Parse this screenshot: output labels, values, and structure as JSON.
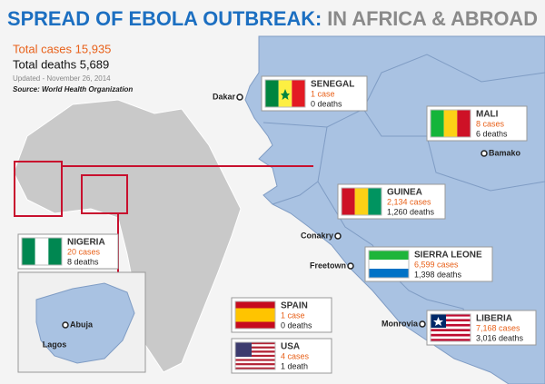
{
  "header": {
    "title_main": "SPREAD OF EBOLA OUTBREAK:",
    "title_sub": "IN AFRICA & ABROAD"
  },
  "summary": {
    "total_cases": "Total cases 15,935",
    "total_deaths": "Total deaths 5,689",
    "updated": "Updated - November 26, 2014",
    "source": "Source: World Health Organization"
  },
  "countries": [
    {
      "name": "SENEGAL",
      "cases": "1 case",
      "deaths": "0 deaths"
    },
    {
      "name": "MALI",
      "cases": "8 cases",
      "deaths": "6 deaths"
    },
    {
      "name": "GUINEA",
      "cases": "2,134 cases",
      "deaths": "1,260 deaths"
    },
    {
      "name": "SIERRA LEONE",
      "cases": "6,599 cases",
      "deaths": "1,398 deaths"
    },
    {
      "name": "LIBERIA",
      "cases": "7,168 cases",
      "deaths": "3,016 deaths"
    },
    {
      "name": "NIGERIA",
      "cases": "20 cases",
      "deaths": "8 deaths"
    },
    {
      "name": "SPAIN",
      "cases": "1 case",
      "deaths": "0 deaths"
    },
    {
      "name": "USA",
      "cases": "4 cases",
      "deaths": "1 death"
    }
  ],
  "cities": [
    "Dakar",
    "Bamako",
    "Conakry",
    "Freetown",
    "Monrovia",
    "Abuja",
    "Lagos"
  ]
}
